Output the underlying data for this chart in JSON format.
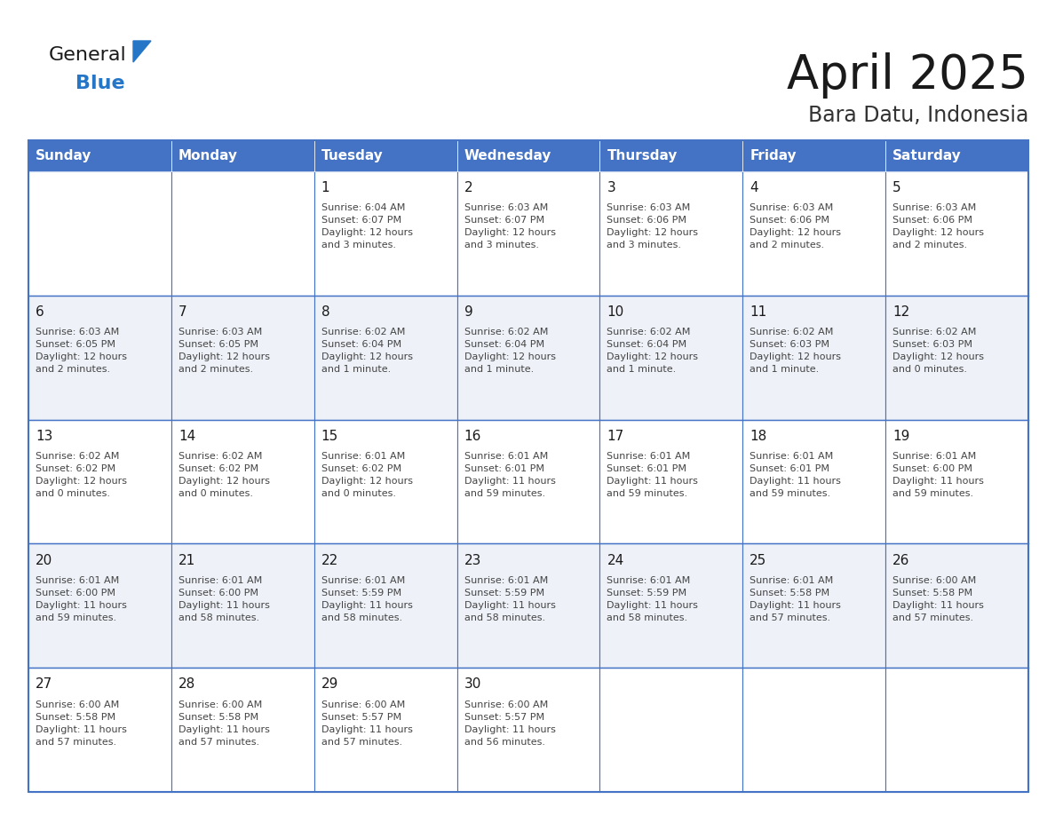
{
  "title": "April 2025",
  "subtitle": "Bara Datu, Indonesia",
  "header_bg": "#4472C4",
  "header_text": "#FFFFFF",
  "header_days": [
    "Sunday",
    "Monday",
    "Tuesday",
    "Wednesday",
    "Thursday",
    "Friday",
    "Saturday"
  ],
  "row_bg_white": "#FFFFFF",
  "row_bg_light": "#EEF2F8",
  "cell_border": "#4472C4",
  "title_color": "#1a1a1a",
  "subtitle_color": "#333333",
  "day_num_color": "#1a1a1a",
  "cell_text_color": "#444444",
  "logo_color_general": "#1a1a1a",
  "logo_color_blue": "#2676C8",
  "logo_triangle_color": "#2676C8",
  "calendar_data": [
    [
      {
        "day": 0,
        "text": ""
      },
      {
        "day": 0,
        "text": ""
      },
      {
        "day": 1,
        "text": "Sunrise: 6:04 AM\nSunset: 6:07 PM\nDaylight: 12 hours\nand 3 minutes."
      },
      {
        "day": 2,
        "text": "Sunrise: 6:03 AM\nSunset: 6:07 PM\nDaylight: 12 hours\nand 3 minutes."
      },
      {
        "day": 3,
        "text": "Sunrise: 6:03 AM\nSunset: 6:06 PM\nDaylight: 12 hours\nand 3 minutes."
      },
      {
        "day": 4,
        "text": "Sunrise: 6:03 AM\nSunset: 6:06 PM\nDaylight: 12 hours\nand 2 minutes."
      },
      {
        "day": 5,
        "text": "Sunrise: 6:03 AM\nSunset: 6:06 PM\nDaylight: 12 hours\nand 2 minutes."
      }
    ],
    [
      {
        "day": 6,
        "text": "Sunrise: 6:03 AM\nSunset: 6:05 PM\nDaylight: 12 hours\nand 2 minutes."
      },
      {
        "day": 7,
        "text": "Sunrise: 6:03 AM\nSunset: 6:05 PM\nDaylight: 12 hours\nand 2 minutes."
      },
      {
        "day": 8,
        "text": "Sunrise: 6:02 AM\nSunset: 6:04 PM\nDaylight: 12 hours\nand 1 minute."
      },
      {
        "day": 9,
        "text": "Sunrise: 6:02 AM\nSunset: 6:04 PM\nDaylight: 12 hours\nand 1 minute."
      },
      {
        "day": 10,
        "text": "Sunrise: 6:02 AM\nSunset: 6:04 PM\nDaylight: 12 hours\nand 1 minute."
      },
      {
        "day": 11,
        "text": "Sunrise: 6:02 AM\nSunset: 6:03 PM\nDaylight: 12 hours\nand 1 minute."
      },
      {
        "day": 12,
        "text": "Sunrise: 6:02 AM\nSunset: 6:03 PM\nDaylight: 12 hours\nand 0 minutes."
      }
    ],
    [
      {
        "day": 13,
        "text": "Sunrise: 6:02 AM\nSunset: 6:02 PM\nDaylight: 12 hours\nand 0 minutes."
      },
      {
        "day": 14,
        "text": "Sunrise: 6:02 AM\nSunset: 6:02 PM\nDaylight: 12 hours\nand 0 minutes."
      },
      {
        "day": 15,
        "text": "Sunrise: 6:01 AM\nSunset: 6:02 PM\nDaylight: 12 hours\nand 0 minutes."
      },
      {
        "day": 16,
        "text": "Sunrise: 6:01 AM\nSunset: 6:01 PM\nDaylight: 11 hours\nand 59 minutes."
      },
      {
        "day": 17,
        "text": "Sunrise: 6:01 AM\nSunset: 6:01 PM\nDaylight: 11 hours\nand 59 minutes."
      },
      {
        "day": 18,
        "text": "Sunrise: 6:01 AM\nSunset: 6:01 PM\nDaylight: 11 hours\nand 59 minutes."
      },
      {
        "day": 19,
        "text": "Sunrise: 6:01 AM\nSunset: 6:00 PM\nDaylight: 11 hours\nand 59 minutes."
      }
    ],
    [
      {
        "day": 20,
        "text": "Sunrise: 6:01 AM\nSunset: 6:00 PM\nDaylight: 11 hours\nand 59 minutes."
      },
      {
        "day": 21,
        "text": "Sunrise: 6:01 AM\nSunset: 6:00 PM\nDaylight: 11 hours\nand 58 minutes."
      },
      {
        "day": 22,
        "text": "Sunrise: 6:01 AM\nSunset: 5:59 PM\nDaylight: 11 hours\nand 58 minutes."
      },
      {
        "day": 23,
        "text": "Sunrise: 6:01 AM\nSunset: 5:59 PM\nDaylight: 11 hours\nand 58 minutes."
      },
      {
        "day": 24,
        "text": "Sunrise: 6:01 AM\nSunset: 5:59 PM\nDaylight: 11 hours\nand 58 minutes."
      },
      {
        "day": 25,
        "text": "Sunrise: 6:01 AM\nSunset: 5:58 PM\nDaylight: 11 hours\nand 57 minutes."
      },
      {
        "day": 26,
        "text": "Sunrise: 6:00 AM\nSunset: 5:58 PM\nDaylight: 11 hours\nand 57 minutes."
      }
    ],
    [
      {
        "day": 27,
        "text": "Sunrise: 6:00 AM\nSunset: 5:58 PM\nDaylight: 11 hours\nand 57 minutes."
      },
      {
        "day": 28,
        "text": "Sunrise: 6:00 AM\nSunset: 5:58 PM\nDaylight: 11 hours\nand 57 minutes."
      },
      {
        "day": 29,
        "text": "Sunrise: 6:00 AM\nSunset: 5:57 PM\nDaylight: 11 hours\nand 57 minutes."
      },
      {
        "day": 30,
        "text": "Sunrise: 6:00 AM\nSunset: 5:57 PM\nDaylight: 11 hours\nand 56 minutes."
      },
      {
        "day": 0,
        "text": ""
      },
      {
        "day": 0,
        "text": ""
      },
      {
        "day": 0,
        "text": ""
      }
    ]
  ]
}
